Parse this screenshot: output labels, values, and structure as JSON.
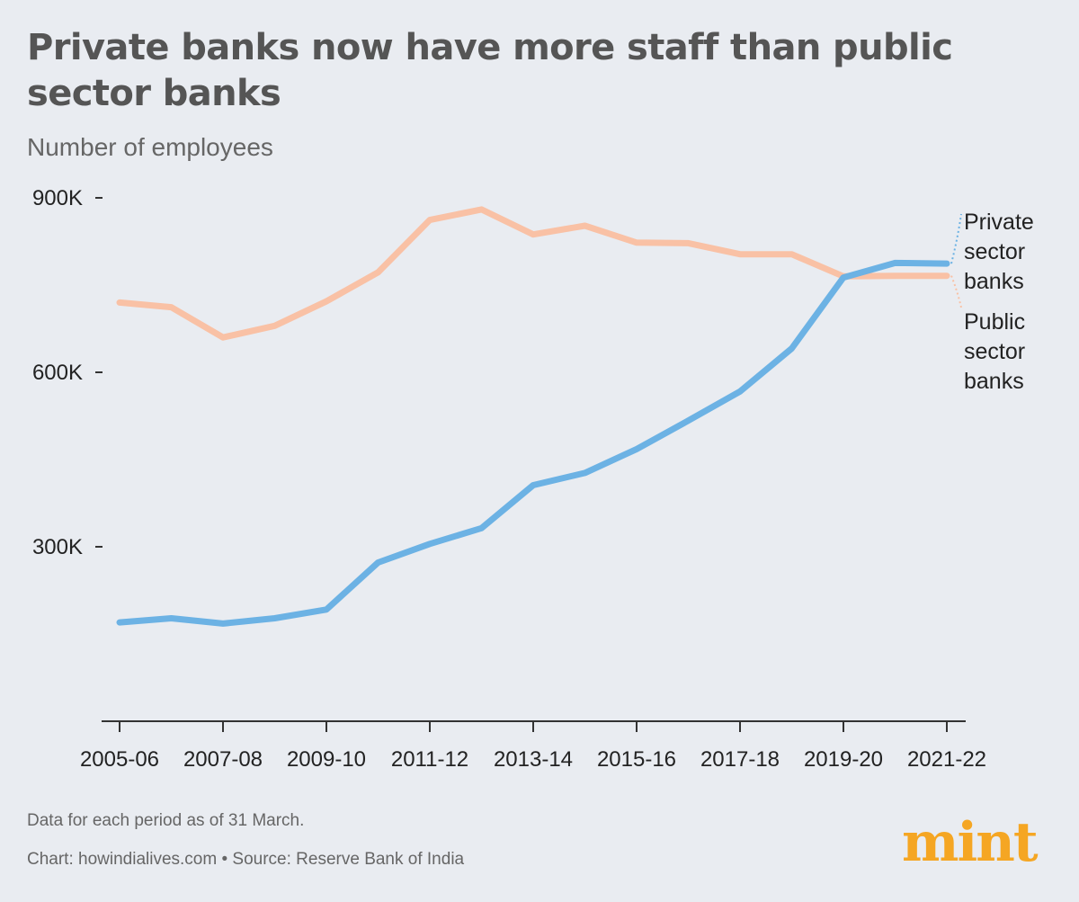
{
  "title": "Private banks now have more staff than public sector banks",
  "subtitle": "Number of employees",
  "footnote": "Data for each period as of 31 March.",
  "source": "Chart: howindialives.com • Source: Reserve Bank of India",
  "logo": "mint",
  "colors": {
    "private": "#6cb2e4",
    "public": "#f9c1a5",
    "brand": "#f5a623",
    "axis": "#333333"
  },
  "chart_data": {
    "type": "line",
    "title": "Private banks now have more staff than public sector banks",
    "ylabel": "Number of employees",
    "xlabel": "",
    "ylim": [
      0,
      900000
    ],
    "yticks": [
      300000,
      600000,
      900000
    ],
    "ytick_labels": [
      "300K",
      "600K",
      "900K"
    ],
    "x": [
      "2005-06",
      "2006-07",
      "2007-08",
      "2008-09",
      "2009-10",
      "2010-11",
      "2011-12",
      "2012-13",
      "2013-14",
      "2014-15",
      "2015-16",
      "2016-17",
      "2017-18",
      "2018-19",
      "2019-20",
      "2020-21",
      "2021-22"
    ],
    "xtick_labels": [
      "2005-06",
      "2007-08",
      "2009-10",
      "2011-12",
      "2013-14",
      "2015-16",
      "2017-18",
      "2019-20",
      "2021-22"
    ],
    "series": [
      {
        "name": "Public sector banks",
        "legend": [
          "Public",
          "sector",
          "banks"
        ],
        "values": [
          720000,
          712000,
          660000,
          680000,
          722000,
          772000,
          862000,
          880000,
          837000,
          852000,
          823000,
          822000,
          803000,
          803000,
          765000,
          766000,
          766000
        ]
      },
      {
        "name": "Private sector banks",
        "legend": [
          "Private",
          "sector",
          "banks"
        ],
        "values": [
          170000,
          177000,
          168000,
          177000,
          192000,
          273000,
          305000,
          332000,
          406000,
          427000,
          468000,
          517000,
          567000,
          641000,
          763000,
          788000,
          787000
        ]
      }
    ]
  }
}
